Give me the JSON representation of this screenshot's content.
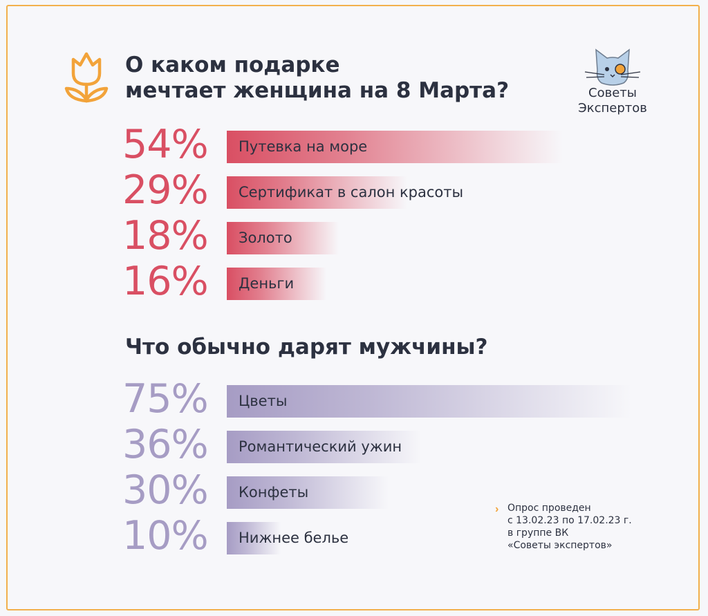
{
  "title": "О каком подарке\nмечтает женщина на 8 Марта?",
  "title_line1": "О каком подарке",
  "title_line2": "мечтает женщина на 8 Марта?",
  "subtitle": "Что обычно дарят мужчины?",
  "logo": {
    "line1": "Советы",
    "line2": "Экспертов"
  },
  "note": {
    "line1": "Опрос проведен",
    "line2": "с 13.02.23 по 17.02.23 г.",
    "line3": "в группе ВК",
    "line4": "«Советы экспертов»"
  },
  "colors": {
    "women": "#d94f63",
    "men": "#a69cc4",
    "accent": "#f2a33a",
    "text": "#2c3140"
  },
  "icons": [
    "tulip-icon",
    "cat-logo-icon",
    "chevron-right-icon"
  ],
  "chart_data": [
    {
      "type": "bar",
      "orientation": "horizontal",
      "title": "О каком подарке мечтает женщина на 8 Марта?",
      "categories": [
        "Путевка на море",
        "Сертификат в салон красоты",
        "Золото",
        "Деньги"
      ],
      "values": [
        54,
        29,
        18,
        16
      ],
      "labels": [
        "54%",
        "29%",
        "18%",
        "16%"
      ],
      "unit": "%"
    },
    {
      "type": "bar",
      "orientation": "horizontal",
      "title": "Что обычно дарят мужчины?",
      "categories": [
        "Цветы",
        "Романтический ужин",
        "Конфеты",
        "Нижнее белье"
      ],
      "values": [
        75,
        36,
        30,
        10
      ],
      "labels": [
        "75%",
        "36%",
        "30%",
        "10%"
      ],
      "unit": "%"
    }
  ]
}
